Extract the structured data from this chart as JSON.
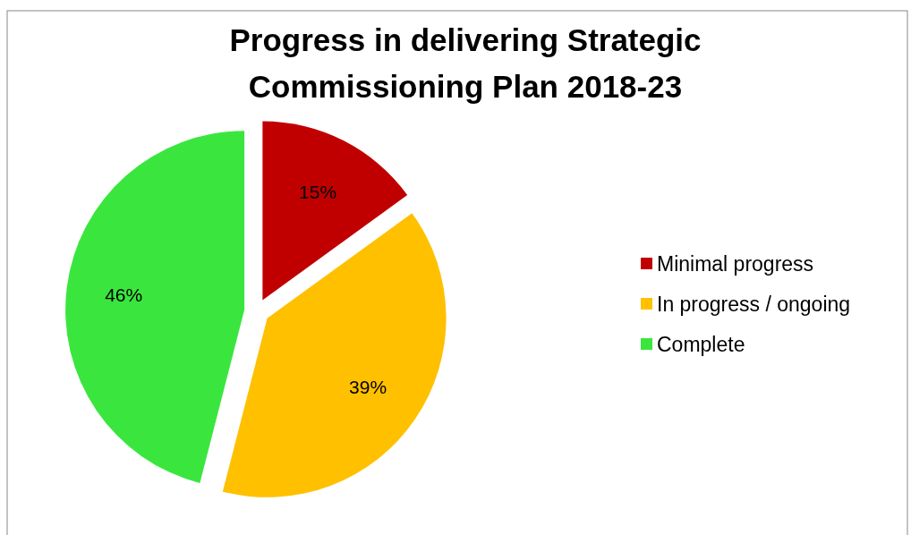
{
  "chart_data": {
    "type": "pie",
    "title": "Progress in delivering Strategic Commissioning Plan 2018-23",
    "categories": [
      "Minimal progress",
      "In progress / ongoing",
      "Complete"
    ],
    "values": [
      15,
      39,
      46
    ],
    "colors": [
      "#c00000",
      "#ffc000",
      "#3ae63e"
    ],
    "value_labels": [
      "15%",
      "39%",
      "46%"
    ],
    "legend": "right"
  }
}
